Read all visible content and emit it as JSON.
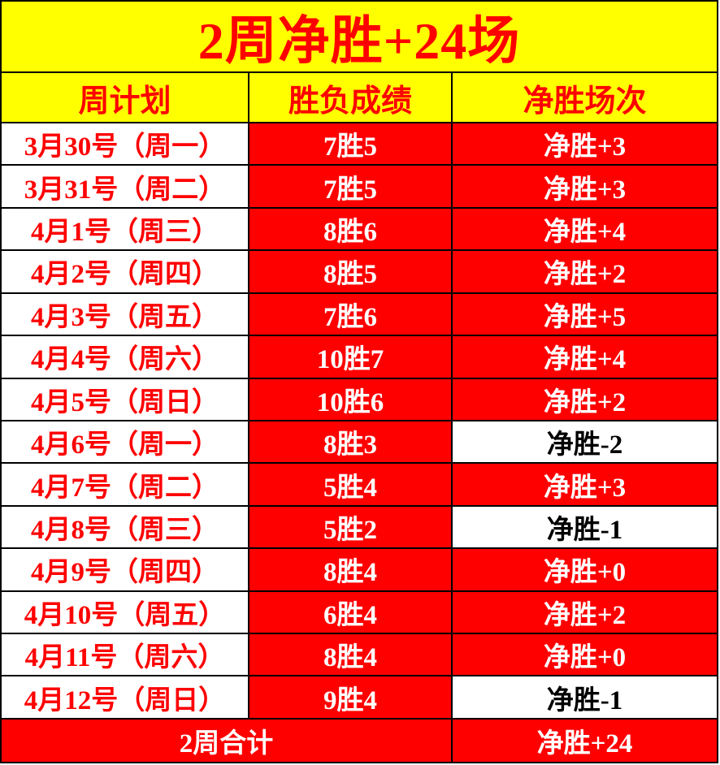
{
  "title": "2周净胜+24场",
  "columns": {
    "plan": "周计划",
    "score": "胜负成绩",
    "net": "净胜场次"
  },
  "rows": [
    {
      "date": "3月30号（周一）",
      "score": "7胜5",
      "net": "净胜+3",
      "negative": false
    },
    {
      "date": "3月31号（周二）",
      "score": "7胜5",
      "net": "净胜+3",
      "negative": false
    },
    {
      "date": "4月1号（周三）",
      "score": "8胜6",
      "net": "净胜+4",
      "negative": false
    },
    {
      "date": "4月2号（周四）",
      "score": "8胜5",
      "net": "净胜+2",
      "negative": false
    },
    {
      "date": "4月3号（周五）",
      "score": "7胜6",
      "net": "净胜+5",
      "negative": false
    },
    {
      "date": "4月4号（周六）",
      "score": "10胜7",
      "net": "净胜+4",
      "negative": false
    },
    {
      "date": "4月5号（周日）",
      "score": "10胜6",
      "net": "净胜+2",
      "negative": false
    },
    {
      "date": "4月6号（周一）",
      "score": "8胜3",
      "net": "净胜-2",
      "negative": true
    },
    {
      "date": "4月7号（周二）",
      "score": "5胜4",
      "net": "净胜+3",
      "negative": false
    },
    {
      "date": "4月8号（周三）",
      "score": "5胜2",
      "net": "净胜-1",
      "negative": true
    },
    {
      "date": "4月9号（周四）",
      "score": "8胜4",
      "net": "净胜+0",
      "negative": false
    },
    {
      "date": "4月10号（周五）",
      "score": "6胜4",
      "net": "净胜+2",
      "negative": false
    },
    {
      "date": "4月11号（周六）",
      "score": "8胜4",
      "net": "净胜+0",
      "negative": false
    },
    {
      "date": "4月12号（周日）",
      "score": "9胜4",
      "net": "净胜-1",
      "negative": true
    }
  ],
  "footer": {
    "label": "2周合计",
    "net": "净胜+24"
  },
  "colors": {
    "red": "#fe0000",
    "yellow": "#ffff00",
    "white": "#ffffff",
    "border": "#000000"
  }
}
